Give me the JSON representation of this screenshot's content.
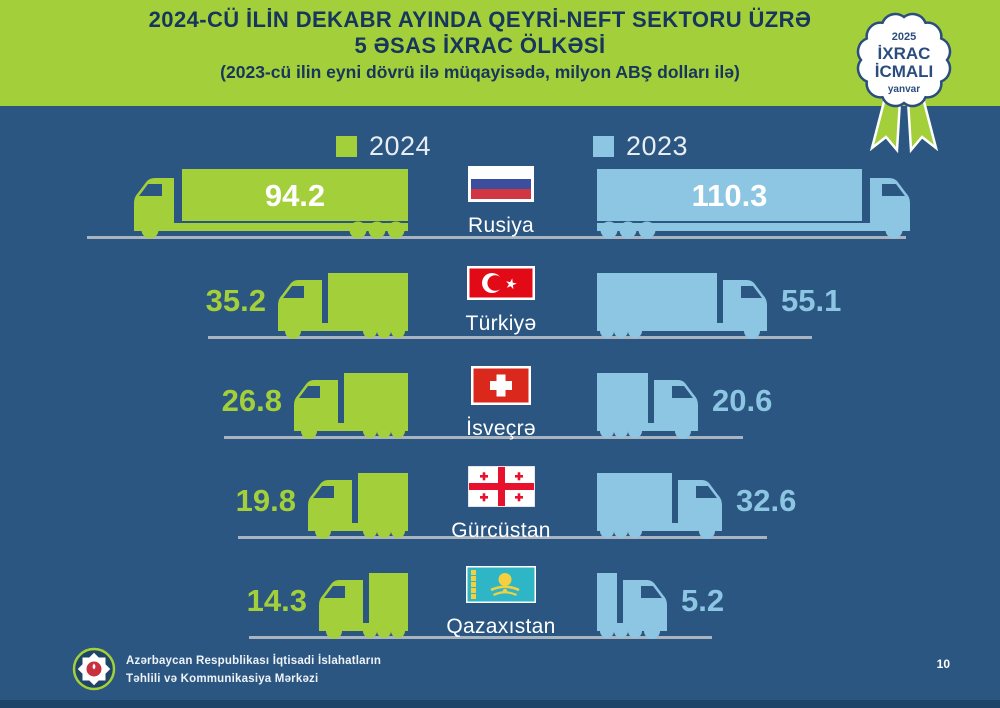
{
  "header": {
    "title_line1": "2024-CÜ İLİN DEKABR AYINDA QEYRİ-NEFT SEKTORU ÜZRƏ",
    "title_line2": "5 ƏSAS İXRAC ÖLKƏSİ",
    "subtitle": "(2023-cü ilin eyni dövrü ilə müqayisədə, milyon ABŞ dolları ilə)",
    "badge": {
      "year": "2025",
      "line1": "İXRAC",
      "line2": "İCMALI",
      "month": "yanvar"
    }
  },
  "legend": {
    "items": [
      {
        "label": "2024",
        "color": "#a3cf3b"
      },
      {
        "label": "2023",
        "color": "#8dc6e3"
      }
    ]
  },
  "chart_data": {
    "type": "bar",
    "title": "2024-cü ilin dekabr ayında qeyri-neft sektoru üzrə 5 əsas ixrac ölkəsi",
    "subtitle": "2023-cü ilin eyni dövrü ilə müqayisədə, milyon ABŞ dolları ilə",
    "unit": "milyon ABŞ dolları",
    "categories": [
      "Rusiya",
      "Türkiyə",
      "İsveçrə",
      "Gürcüstan",
      "Qazaxıstan"
    ],
    "series": [
      {
        "name": "2024",
        "color": "#a3cf3b",
        "values": [
          94.2,
          35.2,
          26.8,
          19.8,
          14.3
        ]
      },
      {
        "name": "2023",
        "color": "#8dc6e3",
        "values": [
          110.3,
          55.1,
          20.6,
          32.6,
          5.2
        ]
      }
    ],
    "flags": [
      "russia-flag",
      "turkiye-flag",
      "switzerland-flag",
      "georgia-flag",
      "kazakhstan-flag"
    ],
    "legend_position": "top",
    "grid": false
  },
  "footer": {
    "org_line1": "Azərbaycan Respublikası İqtisadi İslahatların",
    "org_line2": "Təhlili və Kommunikasiya Mərkəzi",
    "page_number": "10"
  },
  "colors": {
    "background": "#2b5681",
    "header_band": "#a3cf3b",
    "title_text": "#17365c",
    "green_2024": "#a3cf3b",
    "blue_2023": "#8dc6e3",
    "road_line": "#aab4bf",
    "badge_navy": "#2b4d7e",
    "bottom_strip": "#1e4568"
  }
}
